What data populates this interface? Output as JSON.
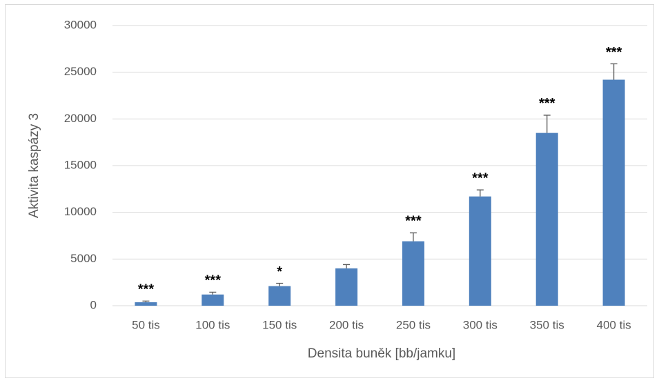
{
  "chart_data": {
    "type": "bar",
    "categories": [
      "50 tis",
      "100 tis",
      "150 tis",
      "200 tis",
      "250 tis",
      "300 tis",
      "350 tis",
      "400 tis"
    ],
    "values": [
      370,
      1200,
      2100,
      4000,
      6900,
      11700,
      18500,
      24200
    ],
    "errors": [
      130,
      250,
      300,
      400,
      900,
      700,
      1900,
      1700
    ],
    "annotations": [
      "***",
      "***",
      "*",
      null,
      "***",
      "***",
      "***",
      "***"
    ],
    "color": "#4f81bd",
    "ylabel": "Aktivita kaspázy 3",
    "xlabel": "Densita buněk [bb/jamku]",
    "ylim": [
      0,
      30000
    ],
    "yticks": [
      0,
      5000,
      10000,
      15000,
      20000,
      25000,
      30000
    ],
    "grid": true
  }
}
